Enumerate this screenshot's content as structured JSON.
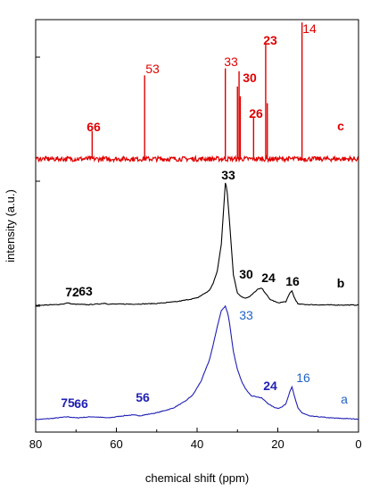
{
  "chart_data": {
    "type": "line",
    "title": "",
    "xlabel": "chemical shift (ppm)",
    "ylabel": "intensity (a.u.)",
    "xlim": [
      80,
      0
    ],
    "x_reversed": true,
    "x_ticks": [
      "80",
      "60",
      "40",
      "20",
      "0"
    ],
    "grid": false,
    "legend": "none",
    "colors": {
      "a": "#1f1fb4",
      "b": "#000000",
      "c": "#e00000",
      "peak_label_a": "#1f63c6"
    },
    "series": [
      {
        "name": "a",
        "color": "#1f1fb4",
        "points": [
          [
            80,
            0
          ],
          [
            76,
            0.01
          ],
          [
            72,
            0.025
          ],
          [
            70,
            0.015
          ],
          [
            66,
            0.025
          ],
          [
            62,
            0.015
          ],
          [
            58,
            0.035
          ],
          [
            56,
            0.04
          ],
          [
            54,
            0.035
          ],
          [
            50,
            0.06
          ],
          [
            46,
            0.1
          ],
          [
            43,
            0.16
          ],
          [
            41,
            0.22
          ],
          [
            39,
            0.34
          ],
          [
            37,
            0.52
          ],
          [
            36,
            0.66
          ],
          [
            35,
            0.82
          ],
          [
            34,
            0.96
          ],
          [
            33,
            1.0
          ],
          [
            32.4,
            0.94
          ],
          [
            32,
            0.86
          ],
          [
            31,
            0.6
          ],
          [
            30,
            0.44
          ],
          [
            29,
            0.34
          ],
          [
            28,
            0.27
          ],
          [
            26.5,
            0.21
          ],
          [
            25,
            0.2
          ],
          [
            24,
            0.19
          ],
          [
            23,
            0.16
          ],
          [
            22,
            0.13
          ],
          [
            21,
            0.11
          ],
          [
            20,
            0.1
          ],
          [
            19,
            0.11
          ],
          [
            18,
            0.14
          ],
          [
            17,
            0.25
          ],
          [
            16.5,
            0.29
          ],
          [
            16,
            0.22
          ],
          [
            15,
            0.1
          ],
          [
            14,
            0.06
          ],
          [
            12,
            0.03
          ],
          [
            10,
            0.025
          ],
          [
            7,
            0.015
          ],
          [
            4,
            0.01
          ],
          [
            0,
            0.005
          ]
        ],
        "peak_labels": [
          "75",
          "66",
          "56",
          "33",
          "24",
          "16"
        ],
        "trace_label": "a"
      },
      {
        "name": "b",
        "color": "#000000",
        "points": [
          [
            80,
            0
          ],
          [
            75,
            0.005
          ],
          [
            73,
            0.012
          ],
          [
            72,
            0.02
          ],
          [
            71,
            0.01
          ],
          [
            67,
            0.005
          ],
          [
            64,
            0.012
          ],
          [
            63,
            0.018
          ],
          [
            62,
            0.01
          ],
          [
            55,
            0.01
          ],
          [
            50,
            0.015
          ],
          [
            45,
            0.03
          ],
          [
            40,
            0.06
          ],
          [
            37,
            0.12
          ],
          [
            36,
            0.18
          ],
          [
            35,
            0.28
          ],
          [
            34,
            0.5
          ],
          [
            33.5,
            0.75
          ],
          [
            33,
            1.0
          ],
          [
            32.6,
            0.95
          ],
          [
            32,
            0.7
          ],
          [
            31,
            0.25
          ],
          [
            30,
            0.1
          ],
          [
            29,
            0.07
          ],
          [
            28,
            0.06
          ],
          [
            27,
            0.07
          ],
          [
            26,
            0.1
          ],
          [
            25,
            0.13
          ],
          [
            24,
            0.14
          ],
          [
            23.5,
            0.12
          ],
          [
            22,
            0.05
          ],
          [
            20,
            0.02
          ],
          [
            18,
            0.03
          ],
          [
            17,
            0.1
          ],
          [
            16.5,
            0.12
          ],
          [
            16,
            0.07
          ],
          [
            15,
            0.01
          ],
          [
            12,
            0.005
          ],
          [
            8,
            0.003
          ],
          [
            0,
            0.002
          ]
        ],
        "peak_labels": [
          "72",
          "63",
          "33",
          "30",
          "24",
          "16"
        ],
        "trace_label": "b"
      },
      {
        "name": "c",
        "color": "#e00000",
        "sticks": [
          [
            66,
            0.2
          ],
          [
            53,
            0.6
          ],
          [
            33,
            0.65
          ],
          [
            30,
            0.52
          ],
          [
            29.6,
            0.63
          ],
          [
            29.3,
            0.45
          ],
          [
            26,
            0.3
          ],
          [
            23,
            0.82
          ],
          [
            22.6,
            0.4
          ],
          [
            14,
            0.98
          ]
        ],
        "peak_labels": [
          "66",
          "53",
          "33",
          "30",
          "26",
          "23",
          "14"
        ],
        "trace_label": "c"
      }
    ]
  }
}
